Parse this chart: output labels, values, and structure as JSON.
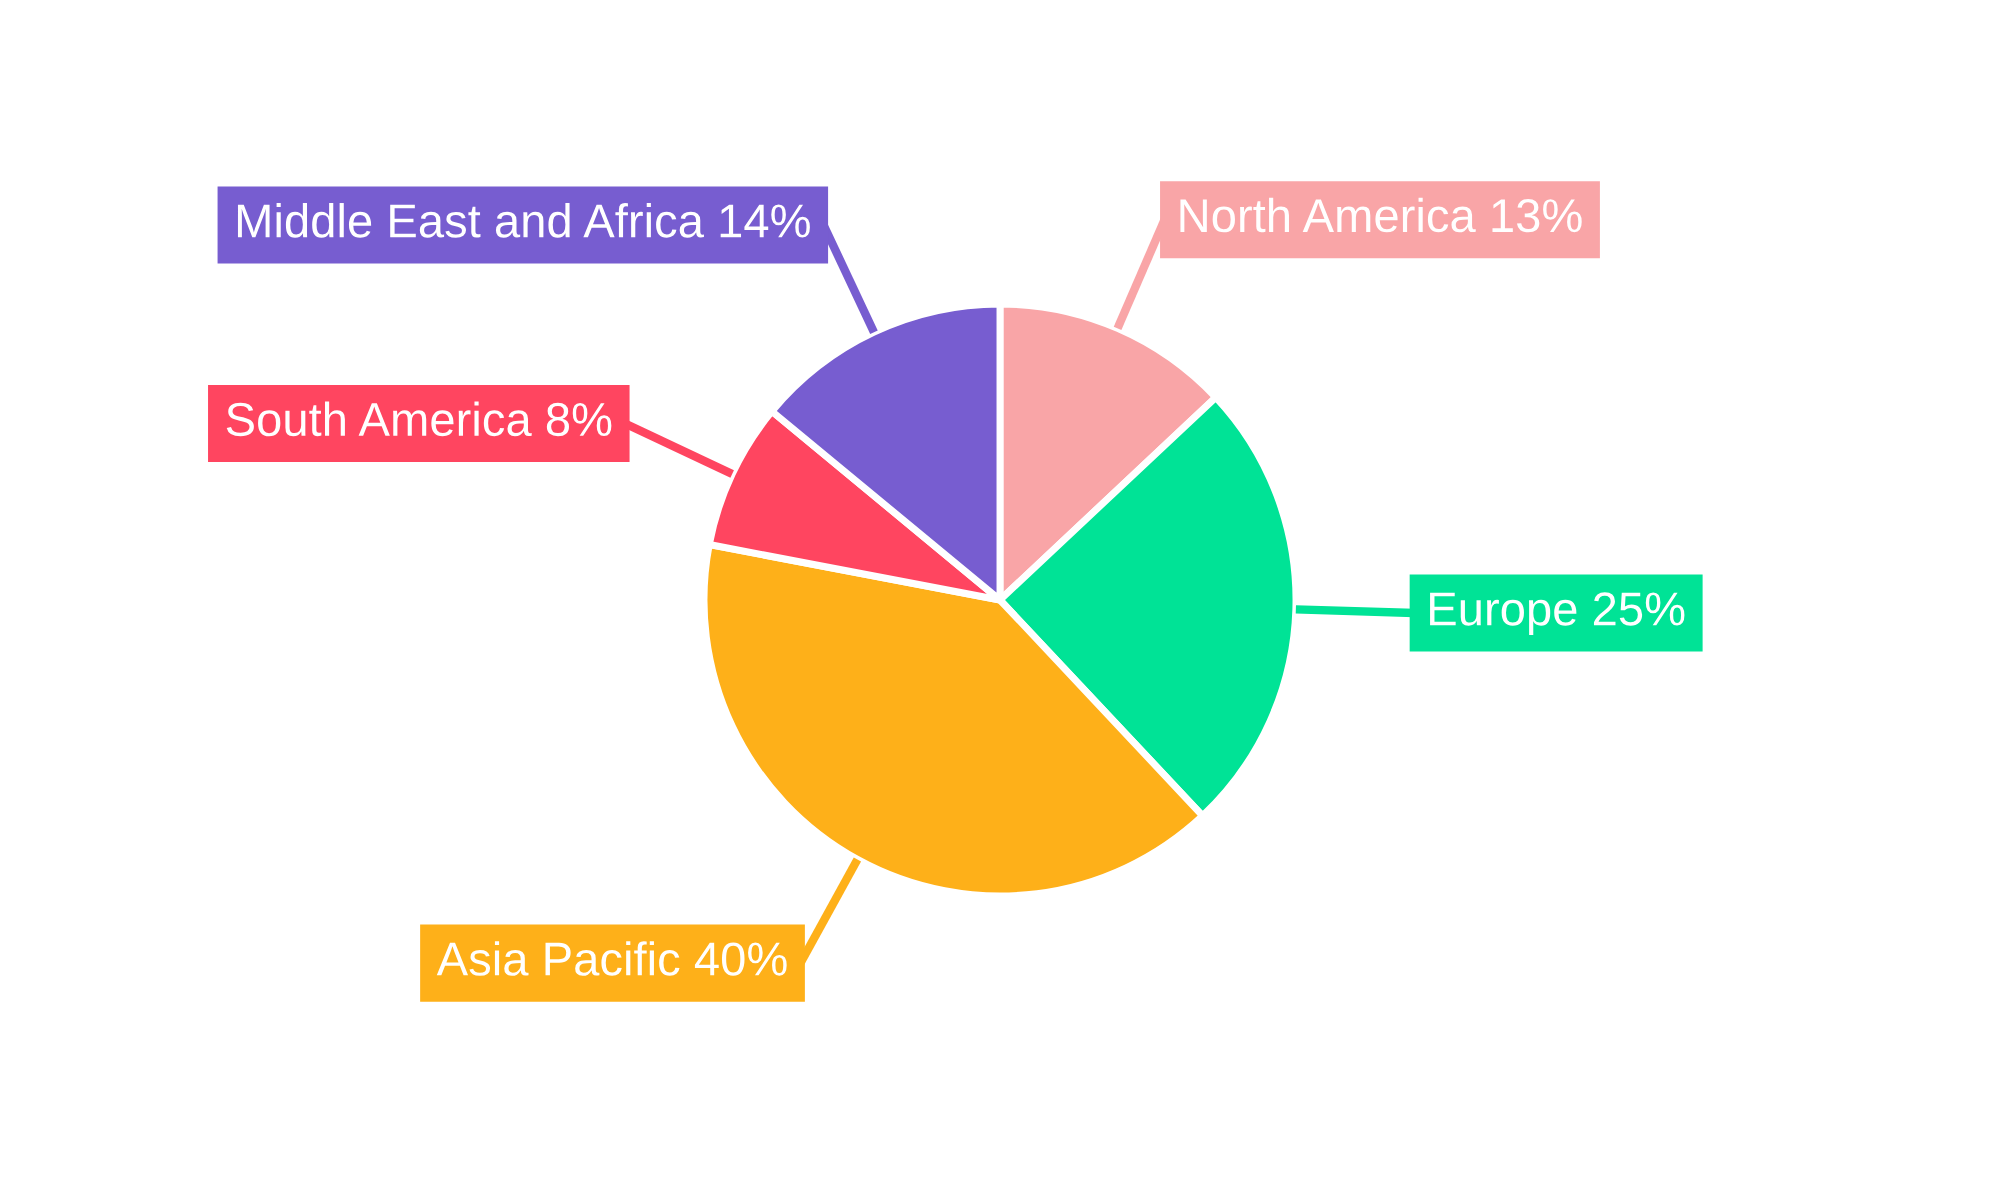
{
  "chart_data": {
    "type": "pie",
    "categories": [
      "North America",
      "Europe",
      "Asia Pacific",
      "South America",
      "Middle East and Africa"
    ],
    "values": [
      13,
      25,
      40,
      8,
      14
    ],
    "colors": [
      "#f9a5a7",
      "#00e396",
      "#feb019",
      "#ff4560",
      "#775dd0"
    ],
    "value_labels": [
      "13%",
      "25%",
      "40%",
      "8%",
      "14%"
    ]
  }
}
